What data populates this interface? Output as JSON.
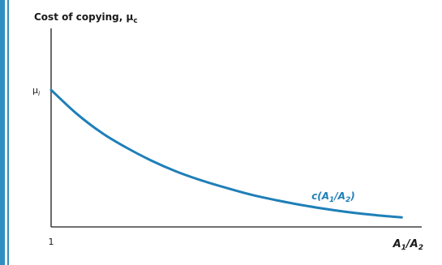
{
  "chart_data": {
    "type": "line",
    "title": "",
    "ylabel": "Cost of copying, μ",
    "ylabel_sub": "c",
    "xlabel": "A",
    "xlabel_sub1": "1",
    "xlabel_mid": "/A",
    "xlabel_sub2": "2",
    "x_tick_label": "1",
    "y_tick_label": "μ",
    "y_tick_sub": "i",
    "series": [
      {
        "name": "c(A1/A2)",
        "label_prefix": "c(A",
        "label_sub1": "1",
        "label_mid": "/A",
        "label_sub2": "2",
        "label_suffix": ")",
        "color": "#1e7fb8",
        "x": [
          1.0,
          1.5,
          2.0,
          2.5,
          3.0,
          3.5,
          4.0,
          4.5,
          5.0,
          5.5,
          6.0,
          6.5,
          7.0,
          7.5,
          8.0
        ],
        "y": [
          1.0,
          0.83,
          0.69,
          0.58,
          0.485,
          0.405,
          0.34,
          0.285,
          0.235,
          0.195,
          0.16,
          0.13,
          0.105,
          0.085,
          0.07
        ]
      }
    ],
    "xlim": [
      1,
      8.4
    ],
    "ylim": [
      0,
      1.45
    ],
    "grid": false,
    "axis_color": "#1a1a1a"
  }
}
